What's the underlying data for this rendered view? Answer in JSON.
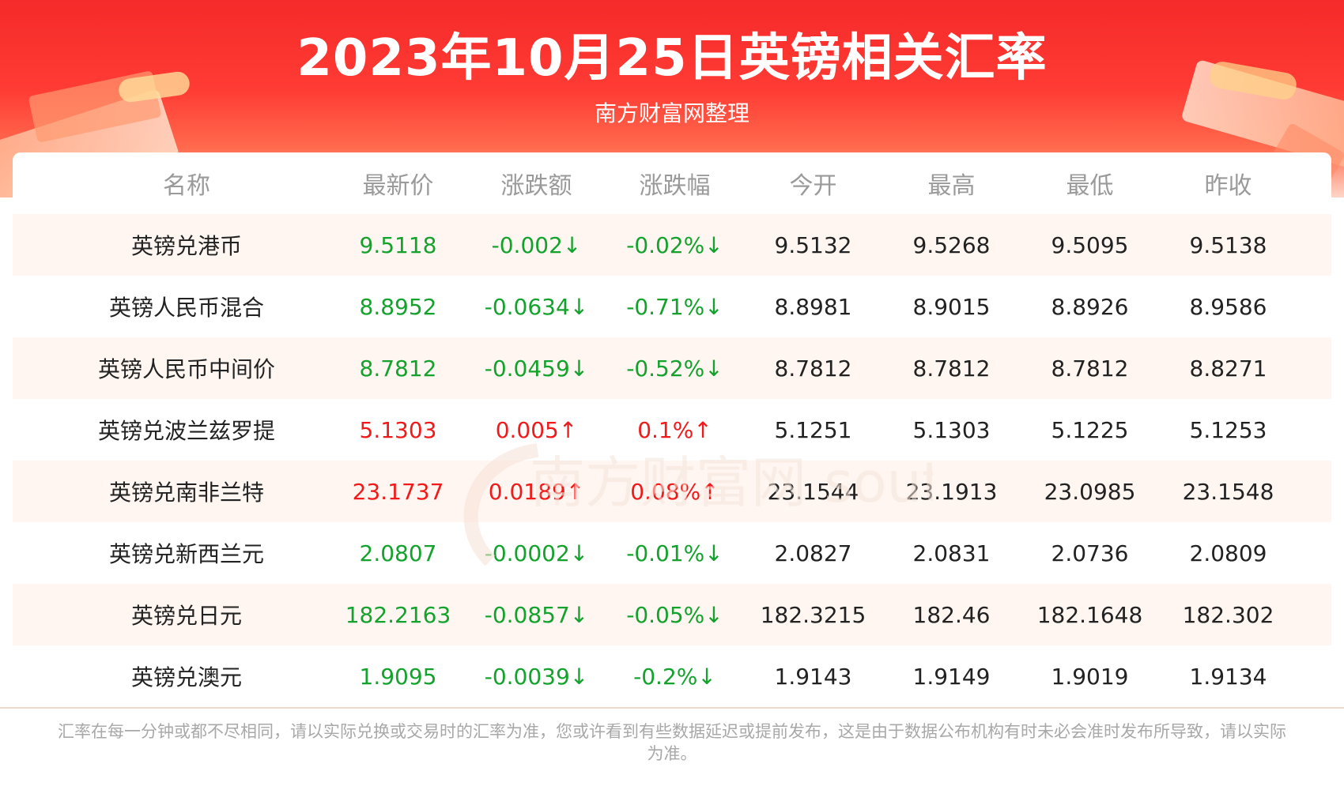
{
  "title": "2023年10月25日英镑相关汇率",
  "subtitle": "南方财富网整理",
  "watermark": "南方财富网 southmoney.com",
  "colors": {
    "up": "#f01a1a",
    "down": "#13a32c",
    "header": "#f52a2a"
  },
  "table": {
    "columns": [
      "名称",
      "最新价",
      "涨跌额",
      "涨跌幅",
      "今开",
      "最高",
      "最低",
      "昨收"
    ],
    "rows": [
      {
        "name": "英镑兑港币",
        "latest": "9.5118",
        "change": "-0.002↓",
        "pct": "-0.02%↓",
        "open": "9.5132",
        "high": "9.5268",
        "low": "9.5095",
        "prev": "9.5138",
        "trend": "down"
      },
      {
        "name": "英镑人民币混合",
        "latest": "8.8952",
        "change": "-0.0634↓",
        "pct": "-0.71%↓",
        "open": "8.8981",
        "high": "8.9015",
        "low": "8.8926",
        "prev": "8.9586",
        "trend": "down"
      },
      {
        "name": "英镑人民币中间价",
        "latest": "8.7812",
        "change": "-0.0459↓",
        "pct": "-0.52%↓",
        "open": "8.7812",
        "high": "8.7812",
        "low": "8.7812",
        "prev": "8.8271",
        "trend": "down"
      },
      {
        "name": "英镑兑波兰兹罗提",
        "latest": "5.1303",
        "change": "0.005↑",
        "pct": "0.1%↑",
        "open": "5.1251",
        "high": "5.1303",
        "low": "5.1225",
        "prev": "5.1253",
        "trend": "up"
      },
      {
        "name": "英镑兑南非兰特",
        "latest": "23.1737",
        "change": "0.0189↑",
        "pct": "0.08%↑",
        "open": "23.1544",
        "high": "23.1913",
        "low": "23.0985",
        "prev": "23.1548",
        "trend": "up"
      },
      {
        "name": "英镑兑新西兰元",
        "latest": "2.0807",
        "change": "-0.0002↓",
        "pct": "-0.01%↓",
        "open": "2.0827",
        "high": "2.0831",
        "low": "2.0736",
        "prev": "2.0809",
        "trend": "down"
      },
      {
        "name": "英镑兑日元",
        "latest": "182.2163",
        "change": "-0.0857↓",
        "pct": "-0.05%↓",
        "open": "182.3215",
        "high": "182.46",
        "low": "182.1648",
        "prev": "182.302",
        "trend": "down"
      },
      {
        "name": "英镑兑澳元",
        "latest": "1.9095",
        "change": "-0.0039↓",
        "pct": "-0.2%↓",
        "open": "1.9143",
        "high": "1.9149",
        "low": "1.9019",
        "prev": "1.9134",
        "trend": "down"
      }
    ]
  },
  "footnote": "汇率在每一分钟或都不尽相同，请以实际兑换或交易时的汇率为准，您或许看到有些数据延迟或提前发布，这是由于数据公布机构有时未必会准时发布所导致，请以实际为准。"
}
